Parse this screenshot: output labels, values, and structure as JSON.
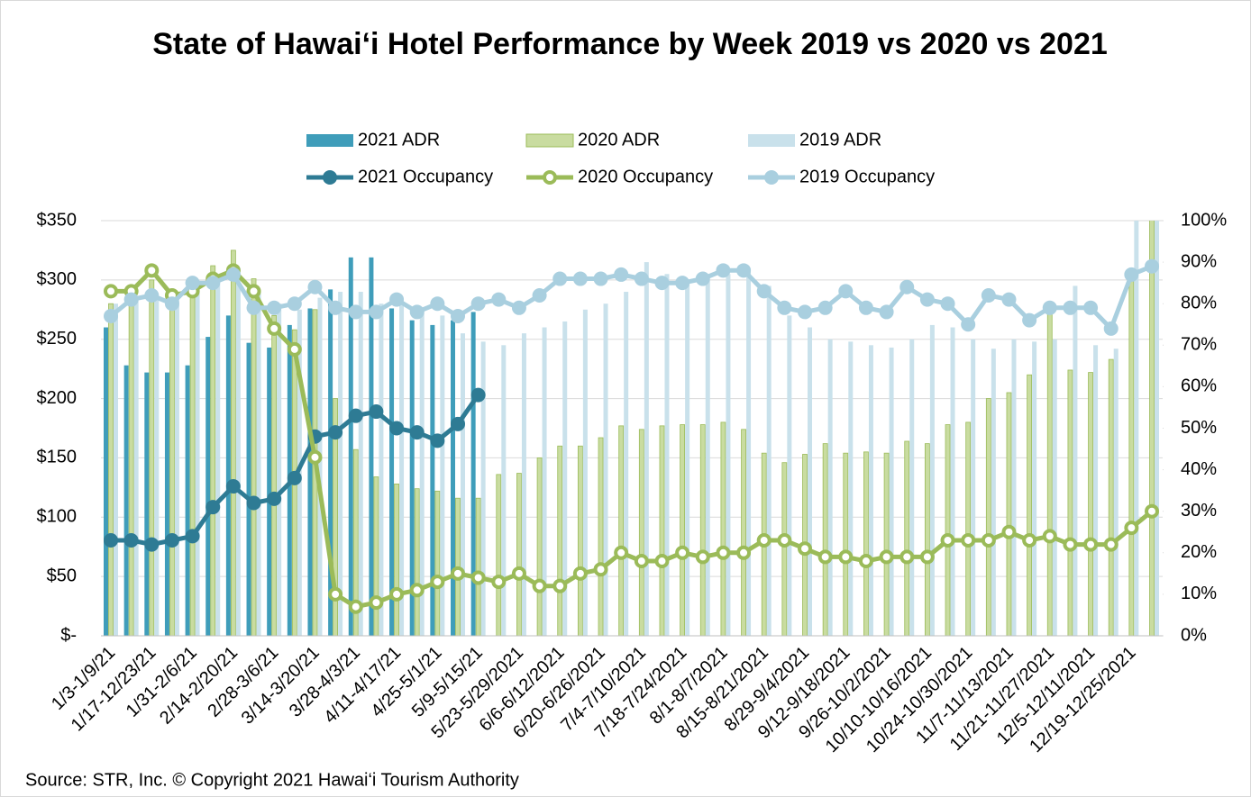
{
  "chart_data": {
    "type": "combo",
    "title": "State of Hawai‘i Hotel Performance by Week  2019 vs 2020 vs 2021",
    "footnote": "Source:  STR, Inc.     © Copyright 2021 Hawai‘i Tourism Authority",
    "categories": [
      "1/3-1/9/21",
      null,
      "1/17-12/23/21",
      null,
      "1/31-2/6/21",
      null,
      "2/14-2/20/21",
      null,
      "2/28-3/6/21",
      null,
      "3/14-3/20/21",
      null,
      "3/28-4/3/21",
      null,
      "4/11-4/17/21",
      null,
      "4/25-5/1/21",
      null,
      "5/9-5/15/21",
      null,
      "5/23-5/29/2021",
      null,
      "6/6-6/12/2021",
      null,
      "6/20-6/26/2021",
      null,
      "7/4-7/10/2021",
      null,
      "7/18-7/24/2021",
      null,
      "8/1-8/7/2021",
      null,
      "8/15-8/21/2021",
      null,
      "8/29-9/4/2021",
      null,
      "9/12-9/18/2021",
      null,
      "9/26-10/2/2021",
      null,
      "10/10-10/16/2021",
      null,
      "10/24-10/30/2021",
      null,
      "11/7-11/13/2021",
      null,
      "11/21-11/27/2021",
      null,
      "12/5-12/11/2021",
      null,
      "12/19-12/25/2021",
      null
    ],
    "series": [
      {
        "name": "2021 ADR",
        "type": "bar",
        "color": "#3f9dba",
        "values": [
          260,
          228,
          222,
          222,
          228,
          252,
          270,
          247,
          243,
          262,
          276,
          292,
          319,
          319,
          276,
          266,
          262,
          266,
          273,
          null,
          null,
          null,
          null,
          null,
          null,
          null,
          null,
          null,
          null,
          null,
          null,
          null,
          null,
          null,
          null,
          null,
          null,
          null,
          null,
          null,
          null,
          null,
          null,
          null,
          null,
          null,
          null,
          null,
          null,
          null,
          null,
          null
        ]
      },
      {
        "name": "2020 ADR",
        "type": "bar",
        "color": "#c9dca0",
        "values": [
          280,
          282,
          300,
          290,
          296,
          312,
          325,
          301,
          270,
          258,
          275,
          200,
          157,
          134,
          128,
          124,
          122,
          116,
          116,
          136,
          137,
          150,
          160,
          160,
          167,
          177,
          174,
          177,
          178,
          178,
          180,
          174,
          154,
          146,
          153,
          162,
          154,
          155,
          154,
          164,
          162,
          178,
          180,
          200,
          205,
          220,
          275,
          224,
          222,
          233,
          300,
          370
        ]
      },
      {
        "name": "2019 ADR",
        "type": "bar",
        "color": "#c9e1eb",
        "values": [
          280,
          285,
          285,
          285,
          300,
          305,
          310,
          290,
          280,
          275,
          285,
          290,
          290,
          280,
          280,
          275,
          270,
          255,
          248,
          245,
          255,
          260,
          265,
          275,
          280,
          290,
          315,
          305,
          300,
          300,
          305,
          310,
          295,
          270,
          260,
          250,
          248,
          245,
          243,
          250,
          262,
          260,
          250,
          242,
          250,
          248,
          250,
          295,
          245,
          242,
          355,
          355
        ]
      },
      {
        "name": "2021 Occupancy",
        "type": "line",
        "axis": "y2",
        "color": "#2e7b94",
        "values": [
          23,
          23,
          22,
          23,
          24,
          31,
          36,
          32,
          33,
          38,
          48,
          49,
          53,
          54,
          50,
          49,
          47,
          51,
          58,
          null,
          null,
          null,
          null,
          null,
          null,
          null,
          null,
          null,
          null,
          null,
          null,
          null,
          null,
          null,
          null,
          null,
          null,
          null,
          null,
          null,
          null,
          null,
          null,
          null,
          null,
          null,
          null,
          null,
          null,
          null,
          null,
          null
        ]
      },
      {
        "name": "2020 Occupancy",
        "type": "line",
        "axis": "y2",
        "color": "#9bbb59",
        "values": [
          83,
          83,
          88,
          82,
          83,
          86,
          88,
          83,
          74,
          69,
          43,
          10,
          7,
          8,
          10,
          11,
          13,
          15,
          14,
          13,
          15,
          12,
          12,
          15,
          16,
          20,
          18,
          18,
          20,
          19,
          20,
          20,
          23,
          23,
          21,
          19,
          19,
          18,
          19,
          19,
          19,
          23,
          23,
          23,
          25,
          23,
          24,
          22,
          22,
          22,
          26,
          30
        ]
      },
      {
        "name": "2019 Occupancy",
        "type": "line",
        "axis": "y2",
        "color": "#a9cfdf",
        "values": [
          77,
          81,
          82,
          80,
          85,
          85,
          87,
          79,
          79,
          80,
          84,
          79,
          78,
          78,
          81,
          78,
          80,
          77,
          80,
          81,
          79,
          82,
          86,
          86,
          86,
          87,
          86,
          85,
          85,
          86,
          88,
          88,
          83,
          79,
          78,
          79,
          83,
          79,
          78,
          84,
          81,
          80,
          75,
          82,
          81,
          76,
          79,
          79,
          79,
          74,
          87,
          89
        ]
      }
    ],
    "ylim": [
      0,
      350
    ],
    "yticks": [
      {
        "value": 0,
        "label": "$-"
      },
      {
        "value": 50,
        "label": "$50"
      },
      {
        "value": 100,
        "label": "$100"
      },
      {
        "value": 150,
        "label": "$150"
      },
      {
        "value": 200,
        "label": "$200"
      },
      {
        "value": 250,
        "label": "$250"
      },
      {
        "value": 300,
        "label": "$300"
      },
      {
        "value": 350,
        "label": "$350"
      }
    ],
    "y2lim": [
      0,
      100
    ],
    "y2ticks": [
      {
        "value": 0,
        "label": "0%"
      },
      {
        "value": 10,
        "label": "10%"
      },
      {
        "value": 20,
        "label": "20%"
      },
      {
        "value": 30,
        "label": "30%"
      },
      {
        "value": 40,
        "label": "40%"
      },
      {
        "value": 50,
        "label": "50%"
      },
      {
        "value": 60,
        "label": "60%"
      },
      {
        "value": 70,
        "label": "70%"
      },
      {
        "value": 80,
        "label": "80%"
      },
      {
        "value": 90,
        "label": "90%"
      },
      {
        "value": 100,
        "label": "100%"
      }
    ],
    "legend": "top"
  }
}
